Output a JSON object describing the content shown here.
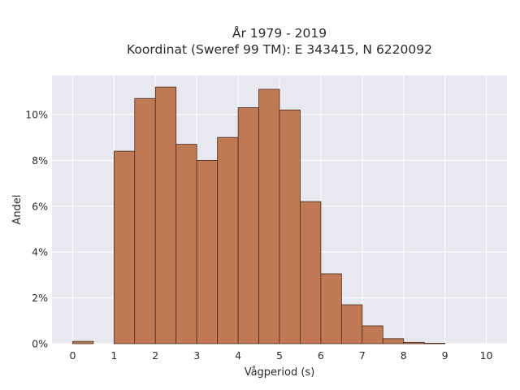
{
  "chart_data": {
    "type": "bar",
    "title_line1": "År 1979 - 2019",
    "title_line2": "Koordinat (Sweref 99 TM): E 343415, N 6220092",
    "xlabel": "Vågperiod (s)",
    "ylabel": "Andel",
    "xlim": [
      -0.5,
      10.5
    ],
    "ylim": [
      0,
      11.7
    ],
    "x_ticks": [
      "0",
      "1",
      "2",
      "3",
      "4",
      "5",
      "6",
      "7",
      "8",
      "9",
      "10"
    ],
    "y_ticks": [
      "0%",
      "2%",
      "4%",
      "6%",
      "8%",
      "10%"
    ],
    "bin_width": 0.5,
    "bins": [
      {
        "x0": 0.0,
        "value": 0.1
      },
      {
        "x0": 0.5,
        "value": 0.0
      },
      {
        "x0": 1.0,
        "value": 8.4
      },
      {
        "x0": 1.5,
        "value": 10.7
      },
      {
        "x0": 2.0,
        "value": 11.2
      },
      {
        "x0": 2.5,
        "value": 8.7
      },
      {
        "x0": 3.0,
        "value": 8.0
      },
      {
        "x0": 3.5,
        "value": 9.0
      },
      {
        "x0": 4.0,
        "value": 10.3
      },
      {
        "x0": 4.5,
        "value": 11.1
      },
      {
        "x0": 5.0,
        "value": 10.2
      },
      {
        "x0": 5.5,
        "value": 6.2
      },
      {
        "x0": 6.0,
        "value": 3.05
      },
      {
        "x0": 6.5,
        "value": 1.7
      },
      {
        "x0": 7.0,
        "value": 0.78
      },
      {
        "x0": 7.5,
        "value": 0.22
      },
      {
        "x0": 8.0,
        "value": 0.06
      },
      {
        "x0": 8.5,
        "value": 0.02
      },
      {
        "x0": 9.0,
        "value": 0.0
      },
      {
        "x0": 9.5,
        "value": 0.0
      }
    ],
    "grid": true,
    "colors": {
      "bar_fill": "#bf7a55",
      "bar_stroke": "#4a2a1a",
      "plot_background": "#e8e8f0",
      "grid": "#ffffff"
    }
  }
}
